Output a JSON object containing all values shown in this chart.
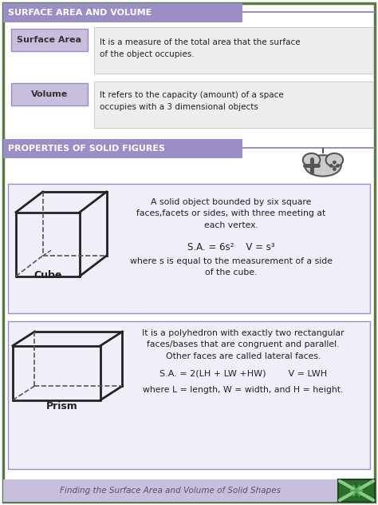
{
  "title": "SURFACE AREA AND VOLUME",
  "title_bg": "#9b8ec4",
  "title_text_color": "#ffffff",
  "section2_title": "PROPERTIES OF SOLID FIGURES",
  "section2_bg": "#9b8ec4",
  "section2_text_color": "#ffffff",
  "bg_color": "#ffffff",
  "outer_border_color": "#5a7a4a",
  "inner_bg": "#ffffff",
  "card_bg": "#f0eef8",
  "card_border": "#9b8ec4",
  "label_bg": "#c8bfdf",
  "label_border": "#9b8ec4",
  "label_text_color": "#333333",
  "def_box_bg": "#eeeeee",
  "def_box_border": "#cccccc",
  "surface_area_label": "Surface Area",
  "surface_area_def": "It is a measure of the total area that the surface\nof the object occupies.",
  "volume_label": "Volume",
  "volume_def": "It refers to the capacity (amount) of a space\noccupies with a 3 dimensional objects",
  "cube_title": "Cube",
  "cube_desc": "A solid object bounded by six square\nfaces,facets or sides, with three meeting at\neach vertex.",
  "cube_formula": "S.A. = 6s²    V = s³",
  "cube_note": "where s is equal to the measurement of a side\nof the cube.",
  "prism_title": "Prism",
  "prism_desc": "It is a polyhedron with exactly two rectangular\nfaces/bases that are congruent and parallel.\nOther faces are called lateral faces.",
  "prism_formula": "S.A. = 2(LH + LW +HW)        V = LWH",
  "prism_note": "where L = length, W = width, and H = height.",
  "footer_text": "Finding the Surface Area and Volume of Solid Shapes",
  "footer_bg": "#c8bfdf",
  "footer_text_color": "#555555",
  "main_text_color": "#222222",
  "shape_color": "#222222",
  "shape_dash_color": "#555555"
}
